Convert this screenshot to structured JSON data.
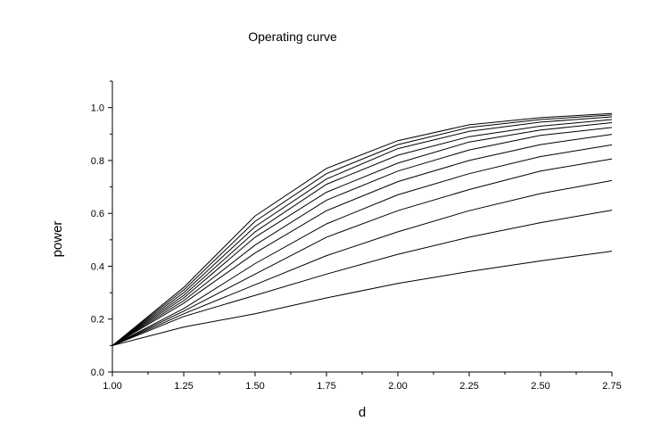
{
  "chart_data": {
    "type": "line",
    "title": "Operating curve",
    "xlabel": "d",
    "ylabel": "power",
    "xlim": [
      1.0,
      2.75
    ],
    "ylim": [
      0.0,
      1.1
    ],
    "x_ticks": [
      "1.00",
      "1.25",
      "1.50",
      "1.75",
      "2.00",
      "2.25",
      "2.50",
      "2.75"
    ],
    "y_ticks": [
      "0.0",
      "0.2",
      "0.4",
      "0.6",
      "0.8",
      "1.0"
    ],
    "x": [
      1.0,
      1.25,
      1.5,
      1.75,
      2.0,
      2.25,
      2.5,
      2.75
    ],
    "grid": false,
    "legend": "none",
    "series": [
      {
        "values": [
          0.1,
          0.17,
          0.22,
          0.28,
          0.335,
          0.38,
          0.42,
          0.457
        ]
      },
      {
        "values": [
          0.1,
          0.21,
          0.29,
          0.37,
          0.445,
          0.51,
          0.565,
          0.612
        ]
      },
      {
        "values": [
          0.1,
          0.22,
          0.33,
          0.44,
          0.53,
          0.61,
          0.675,
          0.724
        ]
      },
      {
        "values": [
          0.1,
          0.23,
          0.37,
          0.51,
          0.61,
          0.69,
          0.76,
          0.806
        ]
      },
      {
        "values": [
          0.1,
          0.24,
          0.41,
          0.56,
          0.67,
          0.75,
          0.815,
          0.859
        ]
      },
      {
        "values": [
          0.1,
          0.26,
          0.45,
          0.61,
          0.72,
          0.8,
          0.86,
          0.899
        ]
      },
      {
        "values": [
          0.1,
          0.27,
          0.48,
          0.65,
          0.76,
          0.84,
          0.895,
          0.925
        ]
      },
      {
        "values": [
          0.1,
          0.28,
          0.51,
          0.68,
          0.79,
          0.87,
          0.915,
          0.943
        ]
      },
      {
        "values": [
          0.1,
          0.29,
          0.53,
          0.71,
          0.82,
          0.89,
          0.93,
          0.955
        ]
      },
      {
        "values": [
          0.1,
          0.3,
          0.55,
          0.73,
          0.845,
          0.91,
          0.945,
          0.965
        ]
      },
      {
        "values": [
          0.1,
          0.31,
          0.57,
          0.75,
          0.86,
          0.925,
          0.955,
          0.972
        ]
      },
      {
        "values": [
          0.1,
          0.32,
          0.59,
          0.77,
          0.875,
          0.935,
          0.962,
          0.978
        ]
      }
    ]
  }
}
